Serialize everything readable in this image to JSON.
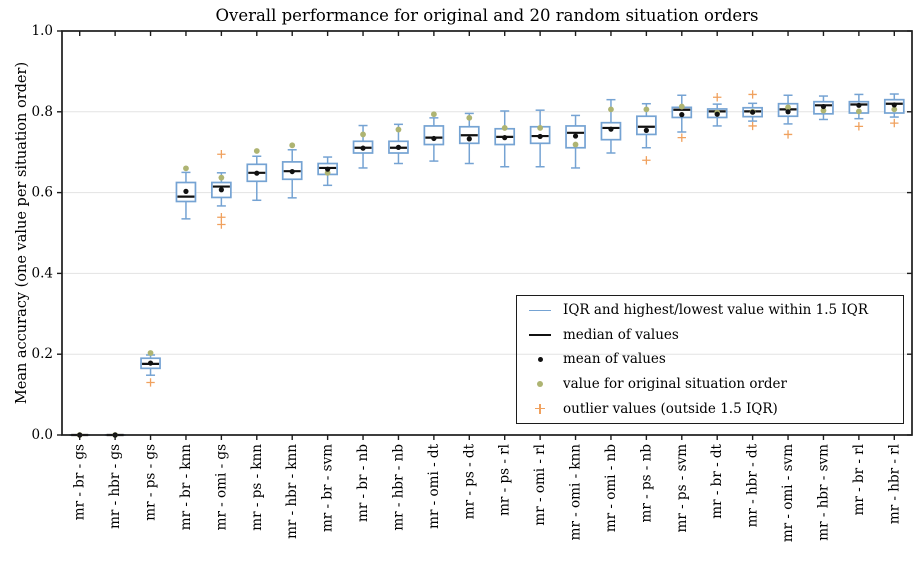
{
  "chart_data": {
    "type": "boxplot",
    "title": "Overall performance for original and 20 random situation orders",
    "xlabel": "",
    "ylabel": "Mean accuracy (one value per situation order)",
    "ylim": [
      0.0,
      1.0
    ],
    "yticks": [
      0.0,
      0.2,
      0.4,
      0.6,
      0.8,
      1.0
    ],
    "grid": "horizontal",
    "legend_position": "lower right",
    "legend": {
      "items": [
        {
          "symbol": "iqr-line",
          "label": "IQR and highest/lowest value within 1.5 IQR"
        },
        {
          "symbol": "median-line",
          "label": "median of values"
        },
        {
          "symbol": "mean-dot",
          "label": "mean of values"
        },
        {
          "symbol": "original-dot",
          "label": "value for original situation order"
        },
        {
          "symbol": "outlier-plus",
          "label": "outlier values (outside 1.5 IQR)"
        }
      ]
    },
    "colors": {
      "box": "#75a3d3",
      "median": "#111111",
      "mean": "#111111",
      "original": "#aeb472",
      "outlier": "#f0a15e",
      "grid": "#e3e3e3",
      "frame": "#1c1c1c"
    },
    "categories": [
      "mr - br - gs",
      "mr - hbr - gs",
      "mr - ps - gs",
      "mr - br - knn",
      "mr - omi - gs",
      "mr - ps - knn",
      "mr - hbr - knn",
      "mr - br - svm",
      "mr - br - nb",
      "mr - hbr - nb",
      "mr - omi - dt",
      "mr - ps - dt",
      "mr - ps - rl",
      "mr - omi - rl",
      "mr - omi - knn",
      "mr - omi - nb",
      "mr - ps - nb",
      "mr - ps - svm",
      "mr - br - dt",
      "mr - hbr - dt",
      "mr - omi - svm",
      "mr - hbr - svm",
      "mr - br - rl",
      "mr - hbr - rl"
    ],
    "series": [
      {
        "name": "mr - br - gs",
        "whislo": 0.0,
        "q1": 0.0,
        "med": 0.0,
        "q3": 0.0,
        "whishi": 0.0,
        "mean": 0.0,
        "original": 0.0,
        "outliers": []
      },
      {
        "name": "mr - hbr - gs",
        "whislo": 0.0,
        "q1": 0.0,
        "med": 0.0,
        "q3": 0.0,
        "whishi": 0.0,
        "mean": 0.0,
        "original": 0.0,
        "outliers": []
      },
      {
        "name": "mr - ps - gs",
        "whislo": 0.148,
        "q1": 0.165,
        "med": 0.176,
        "q3": 0.19,
        "whishi": 0.198,
        "mean": 0.178,
        "original": 0.203,
        "outliers": [
          0.13
        ]
      },
      {
        "name": "mr - br - knn",
        "whislo": 0.535,
        "q1": 0.578,
        "med": 0.59,
        "q3": 0.625,
        "whishi": 0.65,
        "mean": 0.603,
        "original": 0.66,
        "outliers": []
      },
      {
        "name": "mr - omi - gs",
        "whislo": 0.567,
        "q1": 0.588,
        "med": 0.615,
        "q3": 0.625,
        "whishi": 0.649,
        "mean": 0.607,
        "original": 0.637,
        "outliers": [
          0.695,
          0.539,
          0.521
        ]
      },
      {
        "name": "mr - ps - knn",
        "whislo": 0.581,
        "q1": 0.628,
        "med": 0.649,
        "q3": 0.67,
        "whishi": 0.69,
        "mean": 0.648,
        "original": 0.703,
        "outliers": []
      },
      {
        "name": "mr - hbr - knn",
        "whislo": 0.587,
        "q1": 0.633,
        "med": 0.653,
        "q3": 0.676,
        "whishi": 0.706,
        "mean": 0.652,
        "original": 0.717,
        "outliers": []
      },
      {
        "name": "mr - br - svm",
        "whislo": 0.618,
        "q1": 0.645,
        "med": 0.661,
        "q3": 0.672,
        "whishi": 0.688,
        "mean": 0.658,
        "original": 0.649,
        "outliers": []
      },
      {
        "name": "mr - br - nb",
        "whislo": 0.661,
        "q1": 0.698,
        "med": 0.711,
        "q3": 0.727,
        "whishi": 0.766,
        "mean": 0.71,
        "original": 0.744,
        "outliers": []
      },
      {
        "name": "mr - hbr - nb",
        "whislo": 0.672,
        "q1": 0.698,
        "med": 0.711,
        "q3": 0.727,
        "whishi": 0.769,
        "mean": 0.712,
        "original": 0.756,
        "outliers": []
      },
      {
        "name": "mr - omi - dt",
        "whislo": 0.678,
        "q1": 0.719,
        "med": 0.736,
        "q3": 0.765,
        "whishi": 0.785,
        "mean": 0.734,
        "original": 0.794,
        "outliers": []
      },
      {
        "name": "mr - ps - dt",
        "whislo": 0.672,
        "q1": 0.722,
        "med": 0.742,
        "q3": 0.763,
        "whishi": 0.796,
        "mean": 0.733,
        "original": 0.785,
        "outliers": []
      },
      {
        "name": "mr - ps - rl",
        "whislo": 0.664,
        "q1": 0.719,
        "med": 0.738,
        "q3": 0.758,
        "whishi": 0.802,
        "mean": 0.736,
        "original": 0.76,
        "outliers": []
      },
      {
        "name": "mr - omi - rl",
        "whislo": 0.664,
        "q1": 0.722,
        "med": 0.74,
        "q3": 0.763,
        "whishi": 0.804,
        "mean": 0.739,
        "original": 0.76,
        "outliers": []
      },
      {
        "name": "mr - omi - knn",
        "whislo": 0.661,
        "q1": 0.711,
        "med": 0.748,
        "q3": 0.765,
        "whishi": 0.791,
        "mean": 0.74,
        "original": 0.719,
        "outliers": []
      },
      {
        "name": "mr - omi - nb",
        "whislo": 0.698,
        "q1": 0.731,
        "med": 0.76,
        "q3": 0.773,
        "whishi": 0.83,
        "mean": 0.757,
        "original": 0.806,
        "outliers": []
      },
      {
        "name": "mr - ps - nb",
        "whislo": 0.711,
        "q1": 0.744,
        "med": 0.763,
        "q3": 0.789,
        "whishi": 0.82,
        "mean": 0.754,
        "original": 0.806,
        "outliers": [
          0.68
        ]
      },
      {
        "name": "mr - ps - svm",
        "whislo": 0.75,
        "q1": 0.786,
        "med": 0.805,
        "q3": 0.811,
        "whishi": 0.841,
        "mean": 0.793,
        "original": 0.813,
        "outliers": [
          0.736
        ]
      },
      {
        "name": "mr - br - dt",
        "whislo": 0.765,
        "q1": 0.786,
        "med": 0.801,
        "q3": 0.807,
        "whishi": 0.819,
        "mean": 0.794,
        "original": 0.798,
        "outliers": [
          0.836
        ]
      },
      {
        "name": "mr - hbr - dt",
        "whislo": 0.777,
        "q1": 0.788,
        "med": 0.801,
        "q3": 0.81,
        "whishi": 0.821,
        "mean": 0.799,
        "original": 0.8,
        "outliers": [
          0.843,
          0.765
        ]
      },
      {
        "name": "mr - omi - svm",
        "whislo": 0.77,
        "q1": 0.789,
        "med": 0.806,
        "q3": 0.82,
        "whishi": 0.841,
        "mean": 0.8,
        "original": 0.811,
        "outliers": [
          0.744
        ]
      },
      {
        "name": "mr - hbr - svm",
        "whislo": 0.781,
        "q1": 0.795,
        "med": 0.816,
        "q3": 0.825,
        "whishi": 0.839,
        "mean": 0.813,
        "original": 0.803,
        "outliers": []
      },
      {
        "name": "mr - br - rl",
        "whislo": 0.783,
        "q1": 0.797,
        "med": 0.818,
        "q3": 0.825,
        "whishi": 0.843,
        "mean": 0.816,
        "original": 0.801,
        "outliers": [
          0.764
        ]
      },
      {
        "name": "mr - hbr - rl",
        "whislo": 0.787,
        "q1": 0.797,
        "med": 0.82,
        "q3": 0.83,
        "whishi": 0.844,
        "mean": 0.817,
        "original": 0.806,
        "outliers": [
          0.772
        ]
      }
    ]
  }
}
